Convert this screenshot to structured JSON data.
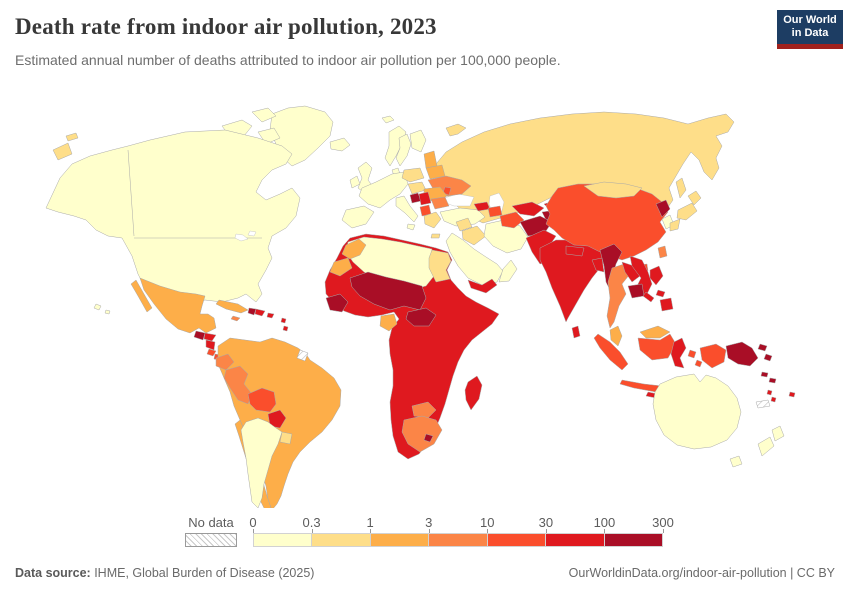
{
  "header": {
    "title": "Death rate from indoor air pollution, 2023",
    "subtitle": "Estimated annual number of deaths attributed to indoor air pollution per 100,000 people.",
    "logo_line1": "Our World",
    "logo_line2": "in Data",
    "logo_bg": "#1d3d63",
    "logo_accent": "#a0211d"
  },
  "legend": {
    "no_data_label": "No data",
    "tick_labels": [
      "0",
      "0.3",
      "1",
      "3",
      "10",
      "30",
      "100",
      "300"
    ],
    "bin_colors": [
      "#FFFFCC",
      "#FEDE89",
      "#FDAE49",
      "#FB8547",
      "#FA4E2C",
      "#DF191F",
      "#A90E26"
    ]
  },
  "footer": {
    "source_label": "Data source:",
    "source_text": " IHME, Global Burden of Disease (2025)",
    "credit": "OurWorldinData.org/indoor-air-pollution | CC BY"
  },
  "chart_data": {
    "type": "choropleth",
    "title": "Death rate from indoor air pollution, 2023",
    "unit": "deaths per 100,000 people",
    "bin_edges": [
      0,
      0.3,
      1,
      3,
      10,
      30,
      100,
      300
    ],
    "legend_position": "bottom",
    "no_data_style": "hatched",
    "regions": {
      "north_america": 0,
      "greenland": 0,
      "arctic_islands": 0,
      "hawaii": 0,
      "chukotka": 1,
      "wrangel": 1,
      "novaya_zemlya": 1,
      "svalbard": 0,
      "mexico": 2,
      "guatemala": 6,
      "honduras": 5,
      "nicaragua": 5,
      "costa_rica": 4,
      "panama": 4,
      "cuba": 2,
      "jamaica": 3,
      "haiti": 6,
      "dominican_republic": 5,
      "puerto_rico": 5,
      "lesser_antilles": 5,
      "south_america": 2,
      "ecuador": 3,
      "peru": 3,
      "bolivia": 4,
      "paraguay": 5,
      "chile": 2,
      "argentina": 0,
      "uruguay": 1,
      "french_guiana": "nodata",
      "africa": 5,
      "north_africa": 0,
      "egypt": 1,
      "morocco": 2,
      "western_sahara": 2,
      "sahel": 6,
      "central_african_republic": 6,
      "guinea_region": 6,
      "gabon": 2,
      "botswana": 3,
      "south_africa": 3,
      "lesotho": 6,
      "madagascar": 5,
      "russia_kazakhstan": 1,
      "sakhalin": 1,
      "iceland": 0,
      "united_kingdom": 0,
      "ireland": 0,
      "norway": 0,
      "sweden": 0,
      "finland": 0,
      "denmark": 0,
      "west_europe": 0,
      "iberia": 0,
      "italy": 0,
      "sicily": 0,
      "poland": 1,
      "czech_hungary": 1,
      "baltics": 2,
      "belarus": 2,
      "ukraine": 3,
      "moldova": 4,
      "romania": 2,
      "bosnia": 6,
      "serbia": 5,
      "albania_macedonia": 4,
      "bulgaria": 3,
      "greece": 1,
      "crete": 1,
      "turkey": 0,
      "georgia": 5,
      "azerbaijan": 4,
      "turkmenistan": 4,
      "uzbekistan": 5,
      "kyrgyzstan": 5,
      "tajikistan": 6,
      "syria": 1,
      "iraq": 1,
      "iran": 0,
      "saudi_arabia": 0,
      "yemen": 5,
      "oman": 0,
      "afghanistan": 6,
      "pakistan": 5,
      "india": 5,
      "nepal": 5,
      "bangladesh": 5,
      "sri_lanka": 5,
      "china": 4,
      "mongolia": 1,
      "north_korea": 6,
      "south_korea": 0,
      "japan": 1,
      "taiwan": 3,
      "hainan": 4,
      "myanmar": 6,
      "thailand": 3,
      "laos": 5,
      "vietnam": 5,
      "cambodia": 6,
      "malaysia": 2,
      "borneo_malaysia": 2,
      "kalimantan": 4,
      "sumatra": 4,
      "java": 4,
      "sulawesi": 5,
      "lesser_sunda": 5,
      "maluku": 4,
      "west_papua": 4,
      "papua_new_guinea": 6,
      "solomon_islands": 6,
      "vanuatu": 5,
      "fiji": 5,
      "new_caledonia": "nodata",
      "philippines": 5,
      "australia": 0,
      "tasmania": 0,
      "new_zealand": 0
    }
  },
  "map_style": {
    "ocean": "#ffffff",
    "border_color": "#a9a9a9"
  }
}
